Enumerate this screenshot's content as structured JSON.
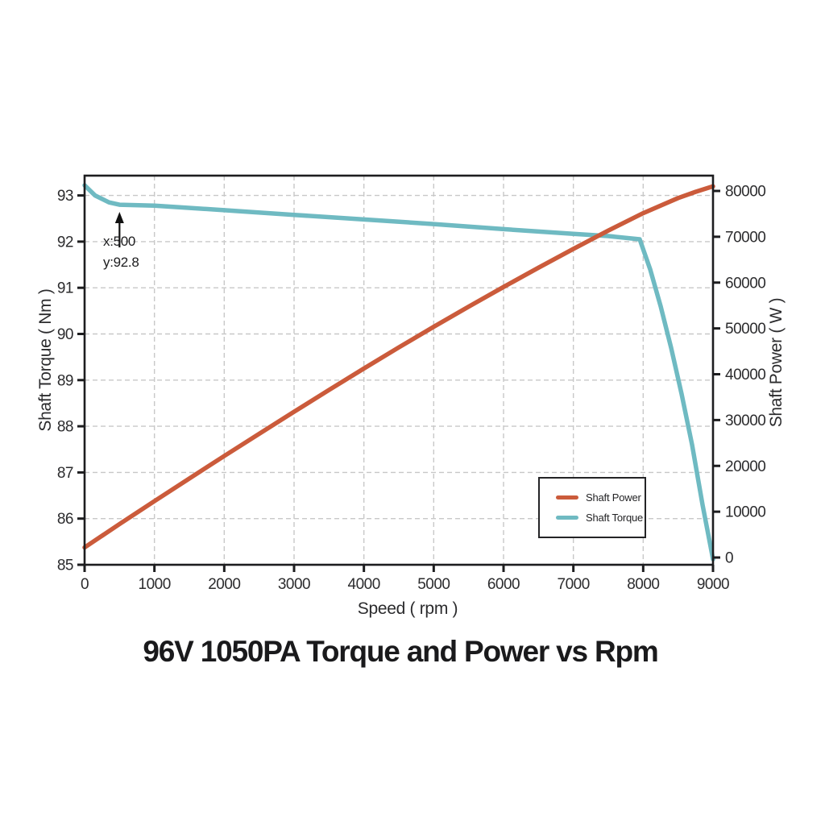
{
  "title": "96V 1050PA Torque and Power vs Rpm",
  "axes": {
    "x_label": "Speed ( rpm )",
    "y_left_label": "Shaft Torque ( Nm )",
    "y_right_label": "Shaft Power ( W )"
  },
  "annotation": {
    "line1": "x:500",
    "line2": "y:92.8",
    "target_x": 500,
    "target_y": 92.8
  },
  "legend": {
    "position": "lower-right-inside",
    "items": [
      {
        "label": "Shaft Power",
        "color": "#cb5b3b"
      },
      {
        "label": "Shaft Torque",
        "color": "#6fbac2"
      }
    ]
  },
  "colors": {
    "power": "#cb5b3b",
    "torque": "#6fbac2",
    "grid": "#c8c8c8",
    "axis": "#1d1d1f",
    "tick_text": "#2c2c2e",
    "title_text": "#1a1a1c"
  },
  "chart_data": {
    "type": "line",
    "title": "96V 1050PA Torque and Power vs Rpm",
    "xlabel": "Speed ( rpm )",
    "ylabel_left": "Shaft Torque ( Nm )",
    "ylabel_right": "Shaft Power ( W )",
    "xlim": [
      0,
      9000
    ],
    "ylim_left": [
      85,
      93.45
    ],
    "ylim_right": [
      -1600,
      83400
    ],
    "grid": "dashed",
    "legend_position": "lower right",
    "x_ticks": [
      0,
      1000,
      2000,
      3000,
      4000,
      5000,
      6000,
      7000,
      8000,
      9000
    ],
    "y_left_ticks": [
      85,
      86,
      87,
      88,
      89,
      90,
      91,
      92,
      93
    ],
    "y_right_ticks": [
      0,
      10000,
      20000,
      30000,
      40000,
      50000,
      60000,
      70000,
      80000
    ],
    "series": [
      {
        "name": "Shaft Power",
        "axis": "right",
        "units": "W",
        "color": "#cb5b3b",
        "x": [
          0,
          500,
          1000,
          1500,
          2000,
          2500,
          3000,
          3500,
          4000,
          4500,
          5000,
          5500,
          6000,
          6500,
          7000,
          7500,
          8000,
          8500,
          8750,
          9000
        ],
        "y": [
          2200,
          7300,
          12300,
          17250,
          22150,
          27000,
          31800,
          36550,
          41250,
          45850,
          50350,
          54750,
          59050,
          63250,
          67350,
          71350,
          75150,
          78450,
          79800,
          81000
        ]
      },
      {
        "name": "Shaft Torque",
        "axis": "left",
        "units": "Nm",
        "color": "#6fbac2",
        "x": [
          0,
          150,
          350,
          500,
          1000,
          2000,
          3000,
          4000,
          5000,
          6000,
          7000,
          7500,
          7950,
          8100,
          8250,
          8400,
          8550,
          8700,
          8850,
          9000
        ],
        "y": [
          93.22,
          93.0,
          92.85,
          92.8,
          92.78,
          92.68,
          92.58,
          92.48,
          92.38,
          92.27,
          92.17,
          92.12,
          92.05,
          91.4,
          90.6,
          89.7,
          88.7,
          87.6,
          86.3,
          85.12
        ]
      }
    ],
    "annotation": {
      "text_lines": [
        "x:500",
        "y:92.8"
      ],
      "target": {
        "x": 500,
        "y": 92.8,
        "axis": "left"
      }
    }
  }
}
